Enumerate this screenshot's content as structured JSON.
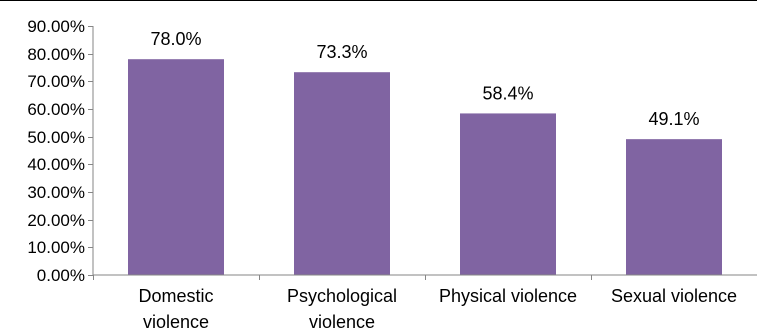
{
  "chart_data": {
    "type": "bar",
    "title": "",
    "xlabel": "",
    "ylabel": "",
    "categories": [
      [
        "Domestic",
        "violence"
      ],
      [
        "Psychological",
        "violence"
      ],
      [
        "Physical violence"
      ],
      [
        "Sexual violence"
      ]
    ],
    "values": [
      78.0,
      73.3,
      58.4,
      49.1
    ],
    "data_labels": [
      "78.0%",
      "73.3%",
      "58.4%",
      "49.1%"
    ],
    "ylim": [
      0,
      90
    ],
    "y_ticks": [
      0,
      10,
      20,
      30,
      40,
      50,
      60,
      70,
      80,
      90
    ],
    "y_tick_labels": [
      "0.00%",
      "10.00%",
      "20.00%",
      "30.00%",
      "40.00%",
      "50.00%",
      "60.00%",
      "70.00%",
      "80.00%",
      "90.00%"
    ],
    "grid": false,
    "legend": "none",
    "colors": {
      "bar": "#8064A2",
      "axis": "#868686",
      "text": "#000000"
    }
  }
}
